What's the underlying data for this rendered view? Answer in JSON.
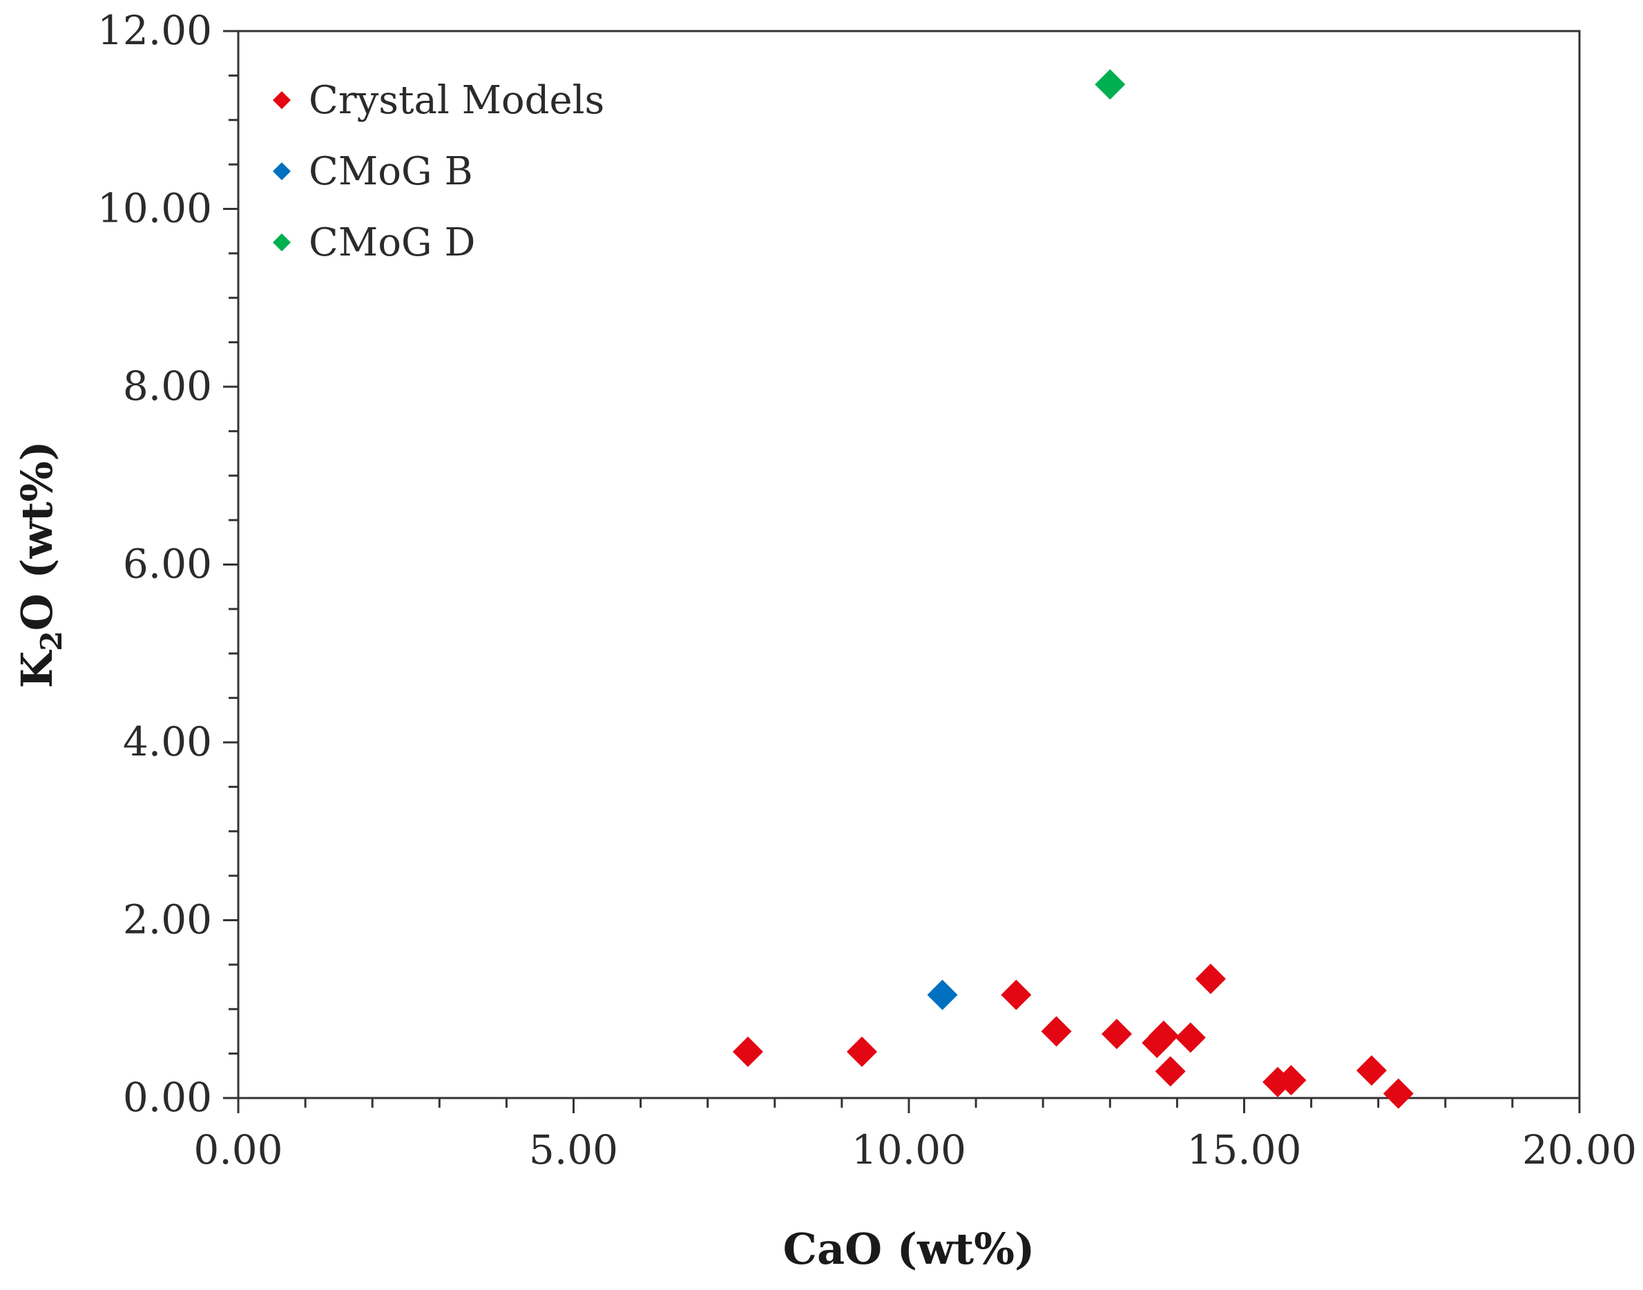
{
  "chart_data": {
    "type": "scatter",
    "title": "",
    "xlabel": "CaO (wt%)",
    "ylabel_main": "K",
    "ylabel_sub": "2",
    "ylabel_rest": "O (wt%)",
    "xlim": [
      0,
      20
    ],
    "ylim": [
      0,
      12
    ],
    "xticks": [
      "0.00",
      "5.00",
      "10.00",
      "15.00",
      "20.00"
    ],
    "yticks": [
      "0.00",
      "2.00",
      "4.00",
      "6.00",
      "8.00",
      "10.00",
      "12.00"
    ],
    "legend_position": "top-left",
    "series": [
      {
        "name": "Crystal Models",
        "color": "#e30613",
        "marker": "diamond",
        "points": [
          [
            7.6,
            0.52
          ],
          [
            9.3,
            0.52
          ],
          [
            11.6,
            1.16
          ],
          [
            12.2,
            0.75
          ],
          [
            13.1,
            0.72
          ],
          [
            13.7,
            0.62
          ],
          [
            13.8,
            0.7
          ],
          [
            13.9,
            0.3
          ],
          [
            14.2,
            0.68
          ],
          [
            14.5,
            1.34
          ],
          [
            15.5,
            0.18
          ],
          [
            15.7,
            0.2
          ],
          [
            16.9,
            0.31
          ],
          [
            17.3,
            0.05
          ]
        ]
      },
      {
        "name": "CMoG B",
        "color": "#0070c0",
        "marker": "diamond",
        "points": [
          [
            10.5,
            1.16
          ]
        ]
      },
      {
        "name": "CMoG D",
        "color": "#00b050",
        "marker": "diamond",
        "points": [
          [
            13.0,
            11.4
          ]
        ]
      }
    ]
  }
}
